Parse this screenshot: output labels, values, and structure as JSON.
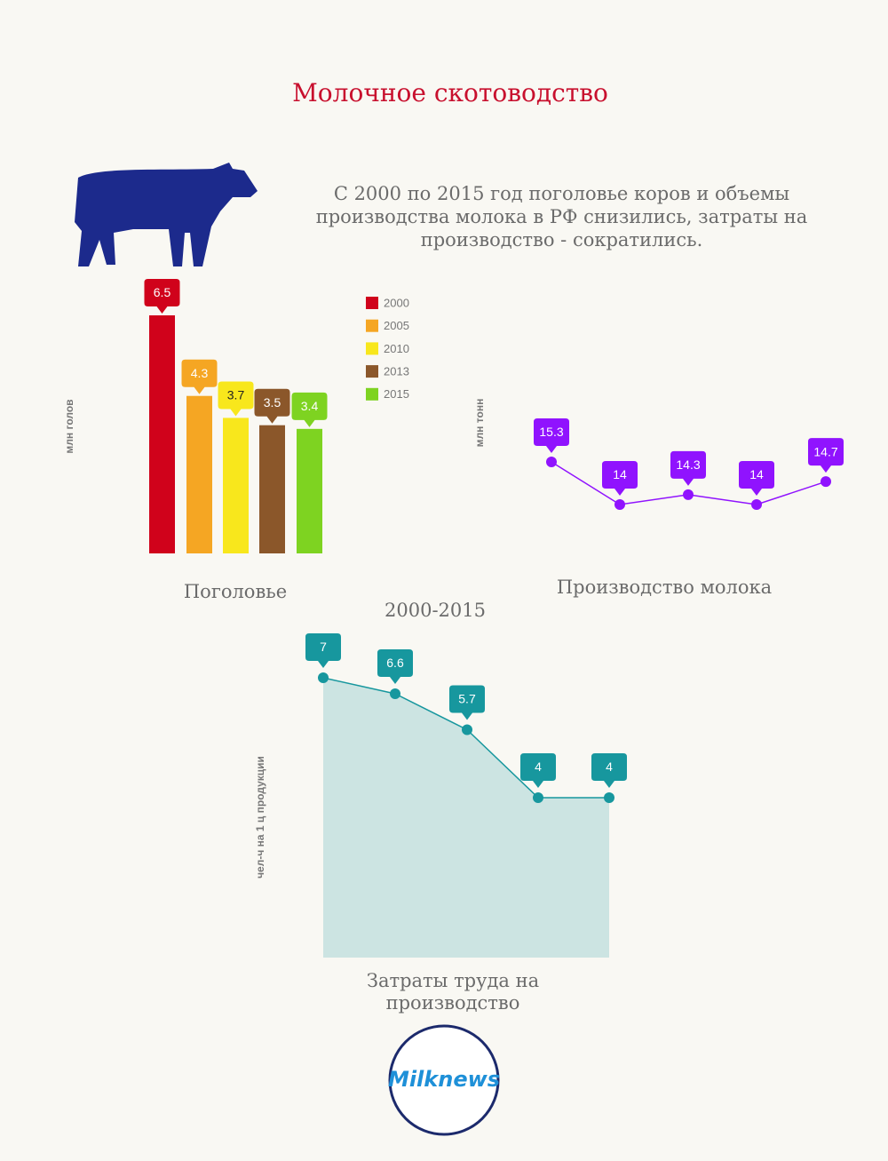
{
  "title": "Молочное скотоводство",
  "subtitle": "С 2000 по 2015 год поголовье коров и объемы производства молока в РФ снизились, затраты на производство - сократились.",
  "logo": "Milknews",
  "chart_data": [
    {
      "type": "bar",
      "title": "Поголовье",
      "ylabel": "млн голов",
      "categories": [
        "2000",
        "2005",
        "2010",
        "2013",
        "2015"
      ],
      "values": [
        6.5,
        4.3,
        3.7,
        3.5,
        3.4
      ],
      "colors": [
        "#d0021b",
        "#f5a623",
        "#f8e71c",
        "#8b572a",
        "#7ed321"
      ]
    },
    {
      "type": "line",
      "title": "Производство молока",
      "ylabel": "млн тонн",
      "values": [
        15.3,
        14,
        14.3,
        14,
        14.7
      ],
      "color": "#9013fe"
    },
    {
      "type": "area",
      "title": "Затраты труда на производство",
      "subtitle": "2000-2015",
      "ylabel": "чел-ч на 1 ц продукции",
      "values": [
        7,
        6.6,
        5.7,
        4,
        4
      ],
      "color": "#17979e"
    }
  ]
}
